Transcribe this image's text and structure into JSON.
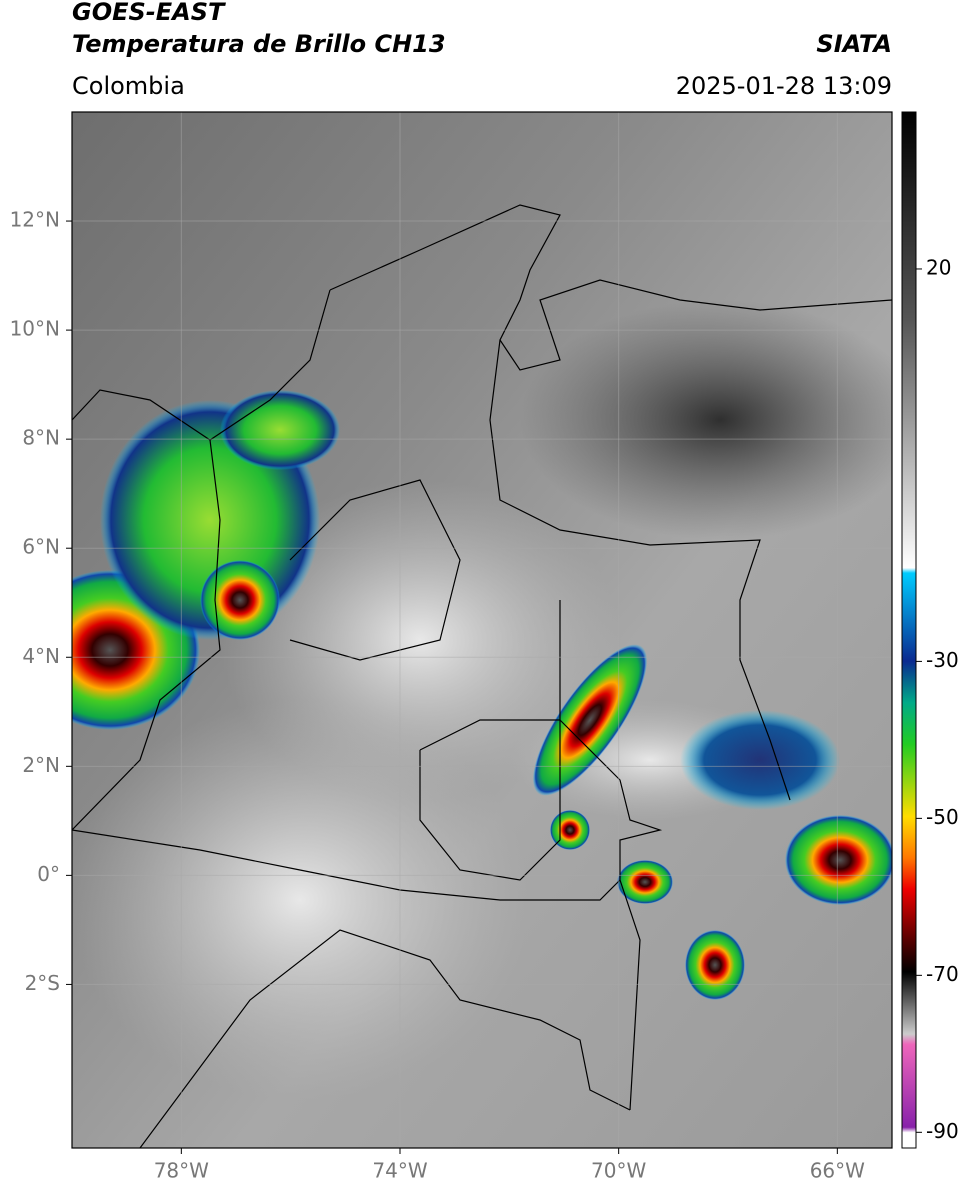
{
  "header": {
    "title": "GOES-EAST",
    "subtitle": "Temperatura de Brillo CH13",
    "source": "SIATA",
    "region": "Colombia",
    "datetime": "2025-01-28 13:09"
  },
  "map": {
    "xlim": [
      -80,
      -65
    ],
    "ylim": [
      -5,
      14
    ],
    "xticks": [
      {
        "value": -78,
        "label": "78°W"
      },
      {
        "value": -74,
        "label": "74°W"
      },
      {
        "value": -70,
        "label": "70°W"
      },
      {
        "value": -66,
        "label": "66°W"
      }
    ],
    "yticks": [
      {
        "value": 12,
        "label": "12°N"
      },
      {
        "value": 10,
        "label": "10°N"
      },
      {
        "value": 8,
        "label": "8°N"
      },
      {
        "value": 6,
        "label": "6°N"
      },
      {
        "value": 4,
        "label": "4°N"
      },
      {
        "value": 2,
        "label": "2°N"
      },
      {
        "value": 0,
        "label": "0°"
      },
      {
        "value": -2,
        "label": "2°S"
      }
    ],
    "grid": true
  },
  "colorbar": {
    "lim": [
      -92,
      40
    ],
    "ticks": [
      20,
      -30,
      -50,
      -70,
      -90
    ]
  }
}
